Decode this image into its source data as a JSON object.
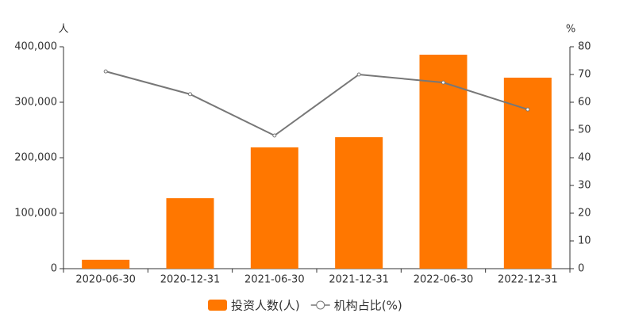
{
  "chart_data": {
    "type": "bar",
    "y_label": "人",
    "y2_label": "%",
    "categories": [
      "2020-06-30",
      "2020-12-31",
      "2021-06-30",
      "2021-12-31",
      "2022-06-30",
      "2022-12-31"
    ],
    "series": [
      {
        "name": "投资人数(人)",
        "type": "bar",
        "color": "#ff7700",
        "values": [
          16000,
          127000,
          218600,
          237000,
          385700,
          344300
        ]
      },
      {
        "name": "机构占比(%)",
        "type": "line",
        "axis": "y2",
        "color": "#777777",
        "values": [
          71.1,
          62.9,
          48.0,
          70.0,
          67.1,
          57.4
        ]
      }
    ],
    "ylim": [
      0,
      400000
    ],
    "yticks": [
      0,
      {
        "value": 100000,
        "label": "100,000"
      },
      {
        "value": 200000,
        "label": "200,000"
      },
      {
        "value": 300000,
        "label": "300,000"
      },
      {
        "value": 400000,
        "label": "400,000"
      }
    ],
    "y2lim": [
      0,
      80
    ],
    "y2ticks": [
      0,
      10,
      20,
      30,
      40,
      50,
      60,
      70,
      80
    ]
  }
}
